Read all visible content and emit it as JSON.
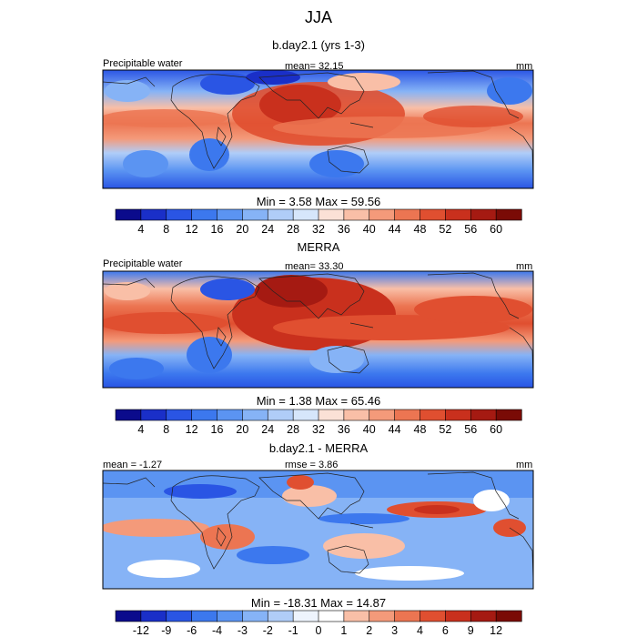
{
  "figure_title": "JJA",
  "units": "mm",
  "panels": [
    {
      "title": "b.day2.1 (yrs 1-3)",
      "left_label": "Precipitable water",
      "center_label": "mean=  32.15",
      "right_label": "mm",
      "minmax": "Min =   3.58 Max =  59.56",
      "colorbar_labels": [
        "4",
        "8",
        "12",
        "16",
        "20",
        "24",
        "28",
        "32",
        "36",
        "40",
        "44",
        "48",
        "52",
        "56",
        "60"
      ],
      "colorbar_colors": [
        "#0b0b8c",
        "#1a2fc8",
        "#2a55e4",
        "#3c78ee",
        "#5b94f2",
        "#86b3f6",
        "#b0cdf8",
        "#d6e6fb",
        "#fbe1d6",
        "#f9bfa7",
        "#f49a7a",
        "#ec7552",
        "#e04f30",
        "#c9301d",
        "#a51a12",
        "#7a0b06"
      ]
    },
    {
      "title": "MERRA",
      "left_label": "Precipitable water",
      "center_label": "mean=  33.30",
      "right_label": "mm",
      "minmax": "Min =   1.38 Max =  65.46",
      "colorbar_labels": [
        "4",
        "8",
        "12",
        "16",
        "20",
        "24",
        "28",
        "32",
        "36",
        "40",
        "44",
        "48",
        "52",
        "56",
        "60"
      ],
      "colorbar_colors": [
        "#0b0b8c",
        "#1a2fc8",
        "#2a55e4",
        "#3c78ee",
        "#5b94f2",
        "#86b3f6",
        "#b0cdf8",
        "#d6e6fb",
        "#fbe1d6",
        "#f9bfa7",
        "#f49a7a",
        "#ec7552",
        "#e04f30",
        "#c9301d",
        "#a51a12",
        "#7a0b06"
      ]
    },
    {
      "title": "b.day2.1 - MERRA",
      "left_label": "mean =  -1.27",
      "center_label": "rmse =   3.86",
      "right_label": "mm",
      "minmax": "Min = -18.31 Max =  14.87",
      "colorbar_labels": [
        "-12",
        "-9",
        "-6",
        "-4",
        "-3",
        "-2",
        "-1",
        "0",
        "1",
        "2",
        "3",
        "4",
        "6",
        "9",
        "12"
      ],
      "colorbar_colors": [
        "#0b0b8c",
        "#1a2fc8",
        "#2a55e4",
        "#3c78ee",
        "#5b94f2",
        "#86b3f6",
        "#b0cdf8",
        "#eef4fd",
        "#ffffff",
        "#f9bfa7",
        "#f49a7a",
        "#ec7552",
        "#e04f30",
        "#c9301d",
        "#a51a12",
        "#7a0b06"
      ]
    }
  ]
}
